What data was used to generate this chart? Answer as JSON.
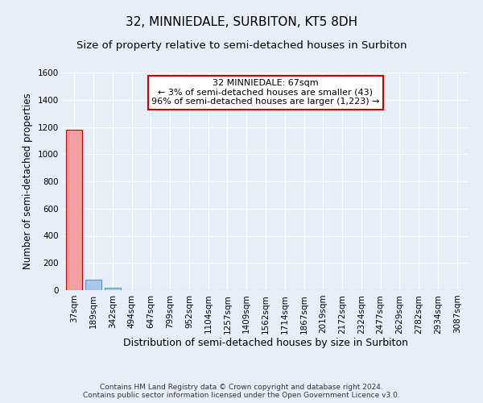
{
  "title": "32, MINNIEDALE, SURBITON, KT5 8DH",
  "subtitle": "Size of property relative to semi-detached houses in Surbiton",
  "xlabel": "Distribution of semi-detached houses by size in Surbiton",
  "ylabel": "Number of semi-detached properties",
  "bin_labels": [
    "37sqm",
    "189sqm",
    "342sqm",
    "494sqm",
    "647sqm",
    "799sqm",
    "952sqm",
    "1104sqm",
    "1257sqm",
    "1409sqm",
    "1562sqm",
    "1714sqm",
    "1867sqm",
    "2019sqm",
    "2172sqm",
    "2324sqm",
    "2477sqm",
    "2629sqm",
    "2782sqm",
    "2934sqm",
    "3087sqm"
  ],
  "bar_values": [
    1180,
    80,
    20,
    0,
    0,
    0,
    0,
    0,
    0,
    0,
    0,
    0,
    0,
    0,
    0,
    0,
    0,
    0,
    0,
    0,
    0
  ],
  "highlight_bar_index": 0,
  "highlight_color": "#f4a0a0",
  "bar_color": "#aec6e8",
  "bar_edge_color": "#5599cc",
  "highlight_edge_color": "#cc0000",
  "ylim": [
    0,
    1600
  ],
  "yticks": [
    0,
    200,
    400,
    600,
    800,
    1000,
    1200,
    1400,
    1600
  ],
  "annotation_text": "32 MINNIEDALE: 67sqm\n← 3% of semi-detached houses are smaller (43)\n96% of semi-detached houses are larger (1,223) →",
  "annotation_box_color": "#ffffff",
  "annotation_box_edge": "#cc0000",
  "footer_line1": "Contains HM Land Registry data © Crown copyright and database right 2024.",
  "footer_line2": "Contains public sector information licensed under the Open Government Licence v3.0.",
  "bg_color": "#e8eef8",
  "plot_bg_color": "#e8eef8",
  "grid_color": "#ffffff",
  "title_fontsize": 11,
  "subtitle_fontsize": 9.5,
  "xlabel_fontsize": 9,
  "ylabel_fontsize": 8.5,
  "tick_fontsize": 7.5,
  "annotation_fontsize": 8,
  "footer_fontsize": 6.5
}
